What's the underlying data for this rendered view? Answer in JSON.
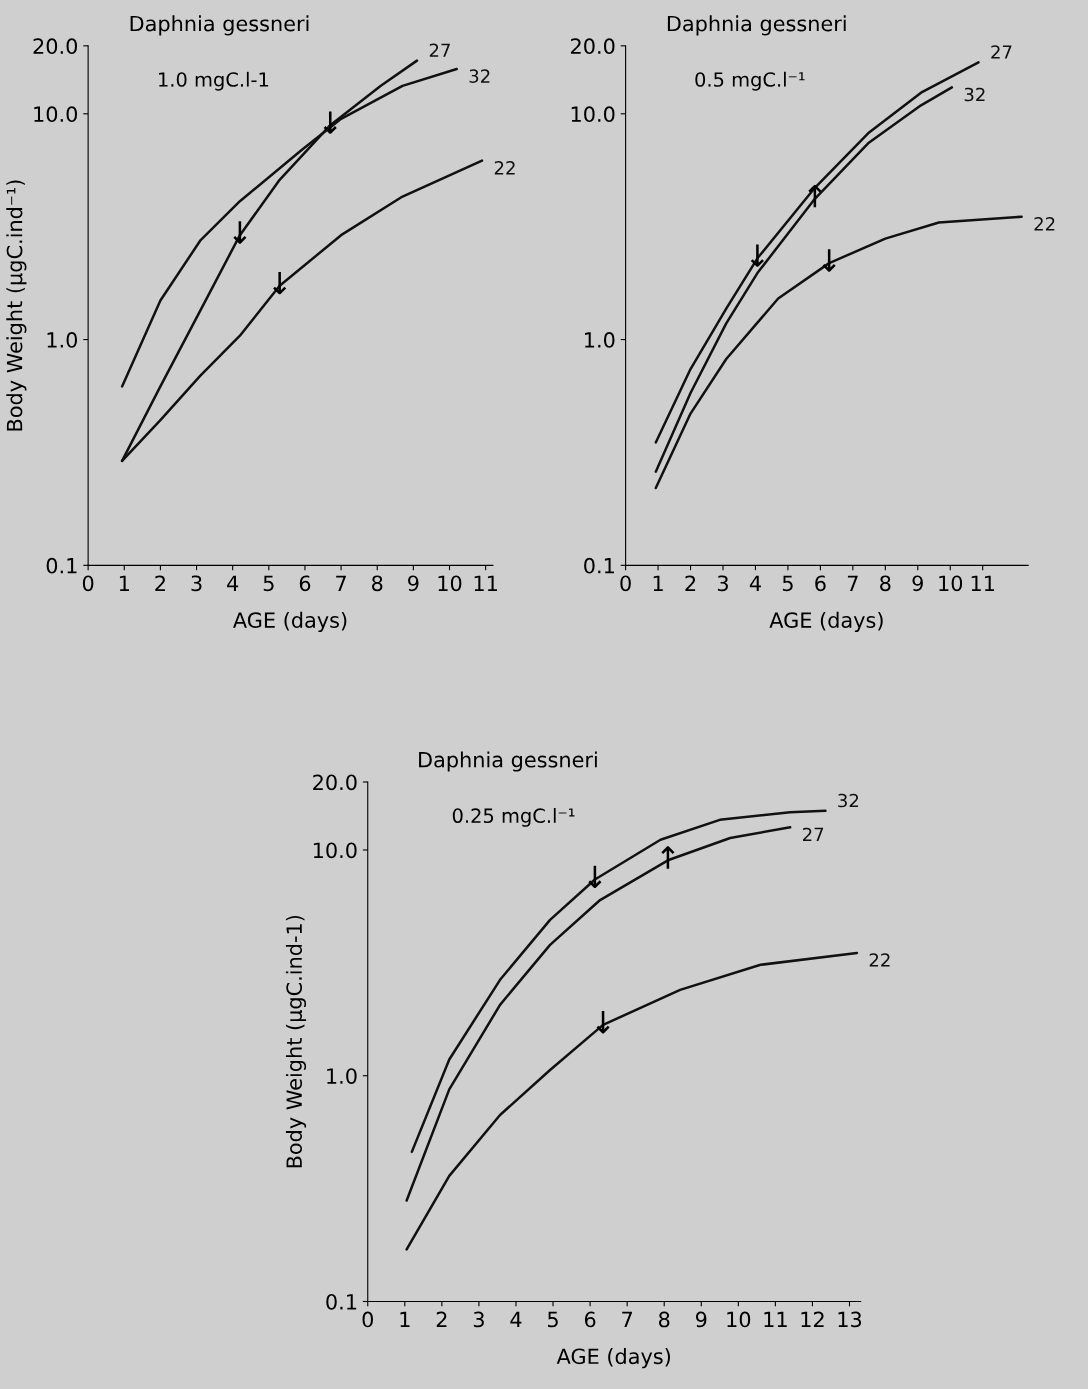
{
  "chart_data": [
    {
      "type": "line",
      "title": "Daphnia gessneri",
      "subtitle": "1.0 mgC.l-1",
      "ylabel": "Body Weight (µgC.ind⁻¹)",
      "xlabel": "AGE (days)",
      "log": "y",
      "grid": false,
      "legend": false,
      "marker": "none",
      "xlim": [
        0,
        11.2
      ],
      "xticks": [
        0,
        1,
        2,
        3,
        4,
        5,
        6,
        7,
        8,
        9,
        10,
        11
      ],
      "ylim": [
        0.1,
        20
      ],
      "yticks": [
        {
          "value": 0.1,
          "label": "0.1"
        },
        {
          "value": 1,
          "label": "1.0"
        },
        {
          "value": 10,
          "label": "10.0"
        },
        {
          "value": 20,
          "label": "20.0"
        }
      ],
      "series": [
        {
          "name": "32",
          "color": "#111111",
          "x": [
            0.94,
            2.0,
            3.1,
            4.2,
            5.9,
            7.0,
            8.7,
            10.2
          ],
          "values": [
            0.62,
            1.49,
            2.74,
            4.1,
            6.9,
            9.5,
            13.3,
            15.8
          ]
        },
        {
          "name": "27",
          "color": "#111111",
          "x": [
            0.94,
            2.0,
            3.1,
            4.2,
            5.3,
            6.7,
            8.1,
            9.1
          ],
          "values": [
            0.29,
            0.62,
            1.34,
            2.9,
            5.1,
            8.9,
            13.3,
            17.2
          ]
        },
        {
          "name": "22",
          "color": "#111111",
          "x": [
            0.94,
            2.0,
            3.1,
            4.2,
            5.3,
            7.0,
            8.7,
            10.9
          ],
          "values": [
            0.29,
            0.44,
            0.69,
            1.04,
            1.73,
            2.9,
            4.3,
            6.2
          ]
        }
      ],
      "annotations": [
        {
          "text": "↓",
          "x": 4.2,
          "y": 2.9
        },
        {
          "text": "↓",
          "x": 5.3,
          "y": 1.73
        },
        {
          "text": "↓",
          "x": 6.7,
          "y": 8.9
        }
      ]
    },
    {
      "type": "line",
      "title": "Daphnia gessneri",
      "subtitle": "0.5 mgC.l⁻¹",
      "xlabel": "AGE (days)",
      "log": "y",
      "grid": false,
      "legend": false,
      "marker": "none",
      "xlim": [
        0,
        12.4
      ],
      "xticks": [
        0,
        1,
        2,
        3,
        4,
        5,
        6,
        7,
        8,
        9,
        10,
        11
      ],
      "ylim": [
        0.1,
        20
      ],
      "yticks": [
        {
          "value": 0.1,
          "label": "0.1"
        },
        {
          "value": 1,
          "label": "1.0"
        },
        {
          "value": 10,
          "label": "10.0"
        },
        {
          "value": 20,
          "label": "20.0"
        }
      ],
      "series": [
        {
          "name": "27",
          "color": "#111111",
          "x": [
            0.93,
            2.0,
            3.1,
            4.06,
            5.83,
            7.47,
            9.1,
            10.87
          ],
          "values": [
            0.35,
            0.74,
            1.37,
            2.29,
            4.7,
            8.2,
            12.4,
            16.9
          ]
        },
        {
          "name": "32",
          "color": "#111111",
          "x": [
            0.93,
            2.0,
            3.1,
            4.06,
            5.83,
            7.47,
            9.1,
            10.05
          ],
          "values": [
            0.26,
            0.58,
            1.18,
            1.97,
            4.2,
            7.4,
            10.9,
            13.1
          ]
        },
        {
          "name": "22",
          "color": "#111111",
          "x": [
            0.93,
            2.0,
            3.1,
            4.7,
            6.27,
            8.0,
            9.65,
            12.2
          ],
          "values": [
            0.22,
            0.47,
            0.82,
            1.52,
            2.18,
            2.8,
            3.3,
            3.5
          ]
        }
      ],
      "annotations": [
        {
          "text": "↓",
          "x": 4.06,
          "y": 2.29
        },
        {
          "text": "↑",
          "x": 5.83,
          "y": 4.2
        },
        {
          "text": "↓",
          "x": 6.27,
          "y": 2.18
        }
      ]
    },
    {
      "type": "line",
      "title": "Daphnia gessneri",
      "subtitle": "0.25 mgC.l⁻¹",
      "ylabel": "Body Weight (µgC.ind-1)",
      "xlabel": "AGE (days)",
      "log": "y",
      "grid": false,
      "legend": false,
      "marker": "none",
      "xlim": [
        0,
        13.3
      ],
      "xticks": [
        0,
        1,
        2,
        3,
        4,
        5,
        6,
        7,
        8,
        9,
        10,
        11,
        12,
        13
      ],
      "ylim": [
        0.1,
        20
      ],
      "yticks": [
        {
          "value": 0.1,
          "label": "0.1"
        },
        {
          "value": 1,
          "label": "1.0"
        },
        {
          "value": 10,
          "label": "10.0"
        },
        {
          "value": 20,
          "label": "20.0"
        }
      ],
      "series": [
        {
          "name": "32",
          "color": "#111111",
          "x": [
            1.19,
            2.2,
            3.57,
            4.92,
            6.13,
            7.9,
            9.5,
            11.4,
            12.35
          ],
          "values": [
            0.46,
            1.18,
            2.66,
            4.9,
            7.4,
            11.1,
            13.6,
            14.7,
            14.9
          ]
        },
        {
          "name": "27",
          "color": "#111111",
          "x": [
            1.05,
            2.2,
            3.57,
            4.92,
            6.27,
            8.1,
            9.78,
            11.4
          ],
          "values": [
            0.28,
            0.87,
            2.06,
            3.8,
            6.0,
            9.0,
            11.3,
            12.6
          ]
        },
        {
          "name": "22",
          "color": "#111111",
          "x": [
            1.05,
            2.2,
            3.57,
            4.92,
            6.35,
            8.43,
            10.6,
            13.2
          ],
          "values": [
            0.17,
            0.36,
            0.67,
            1.06,
            1.68,
            2.4,
            3.1,
            3.5
          ]
        }
      ],
      "annotations": [
        {
          "text": "↓",
          "x": 6.13,
          "y": 7.4
        },
        {
          "text": "↑",
          "x": 8.1,
          "y": 9.0
        },
        {
          "text": "↓",
          "x": 6.35,
          "y": 1.68
        }
      ]
    }
  ]
}
